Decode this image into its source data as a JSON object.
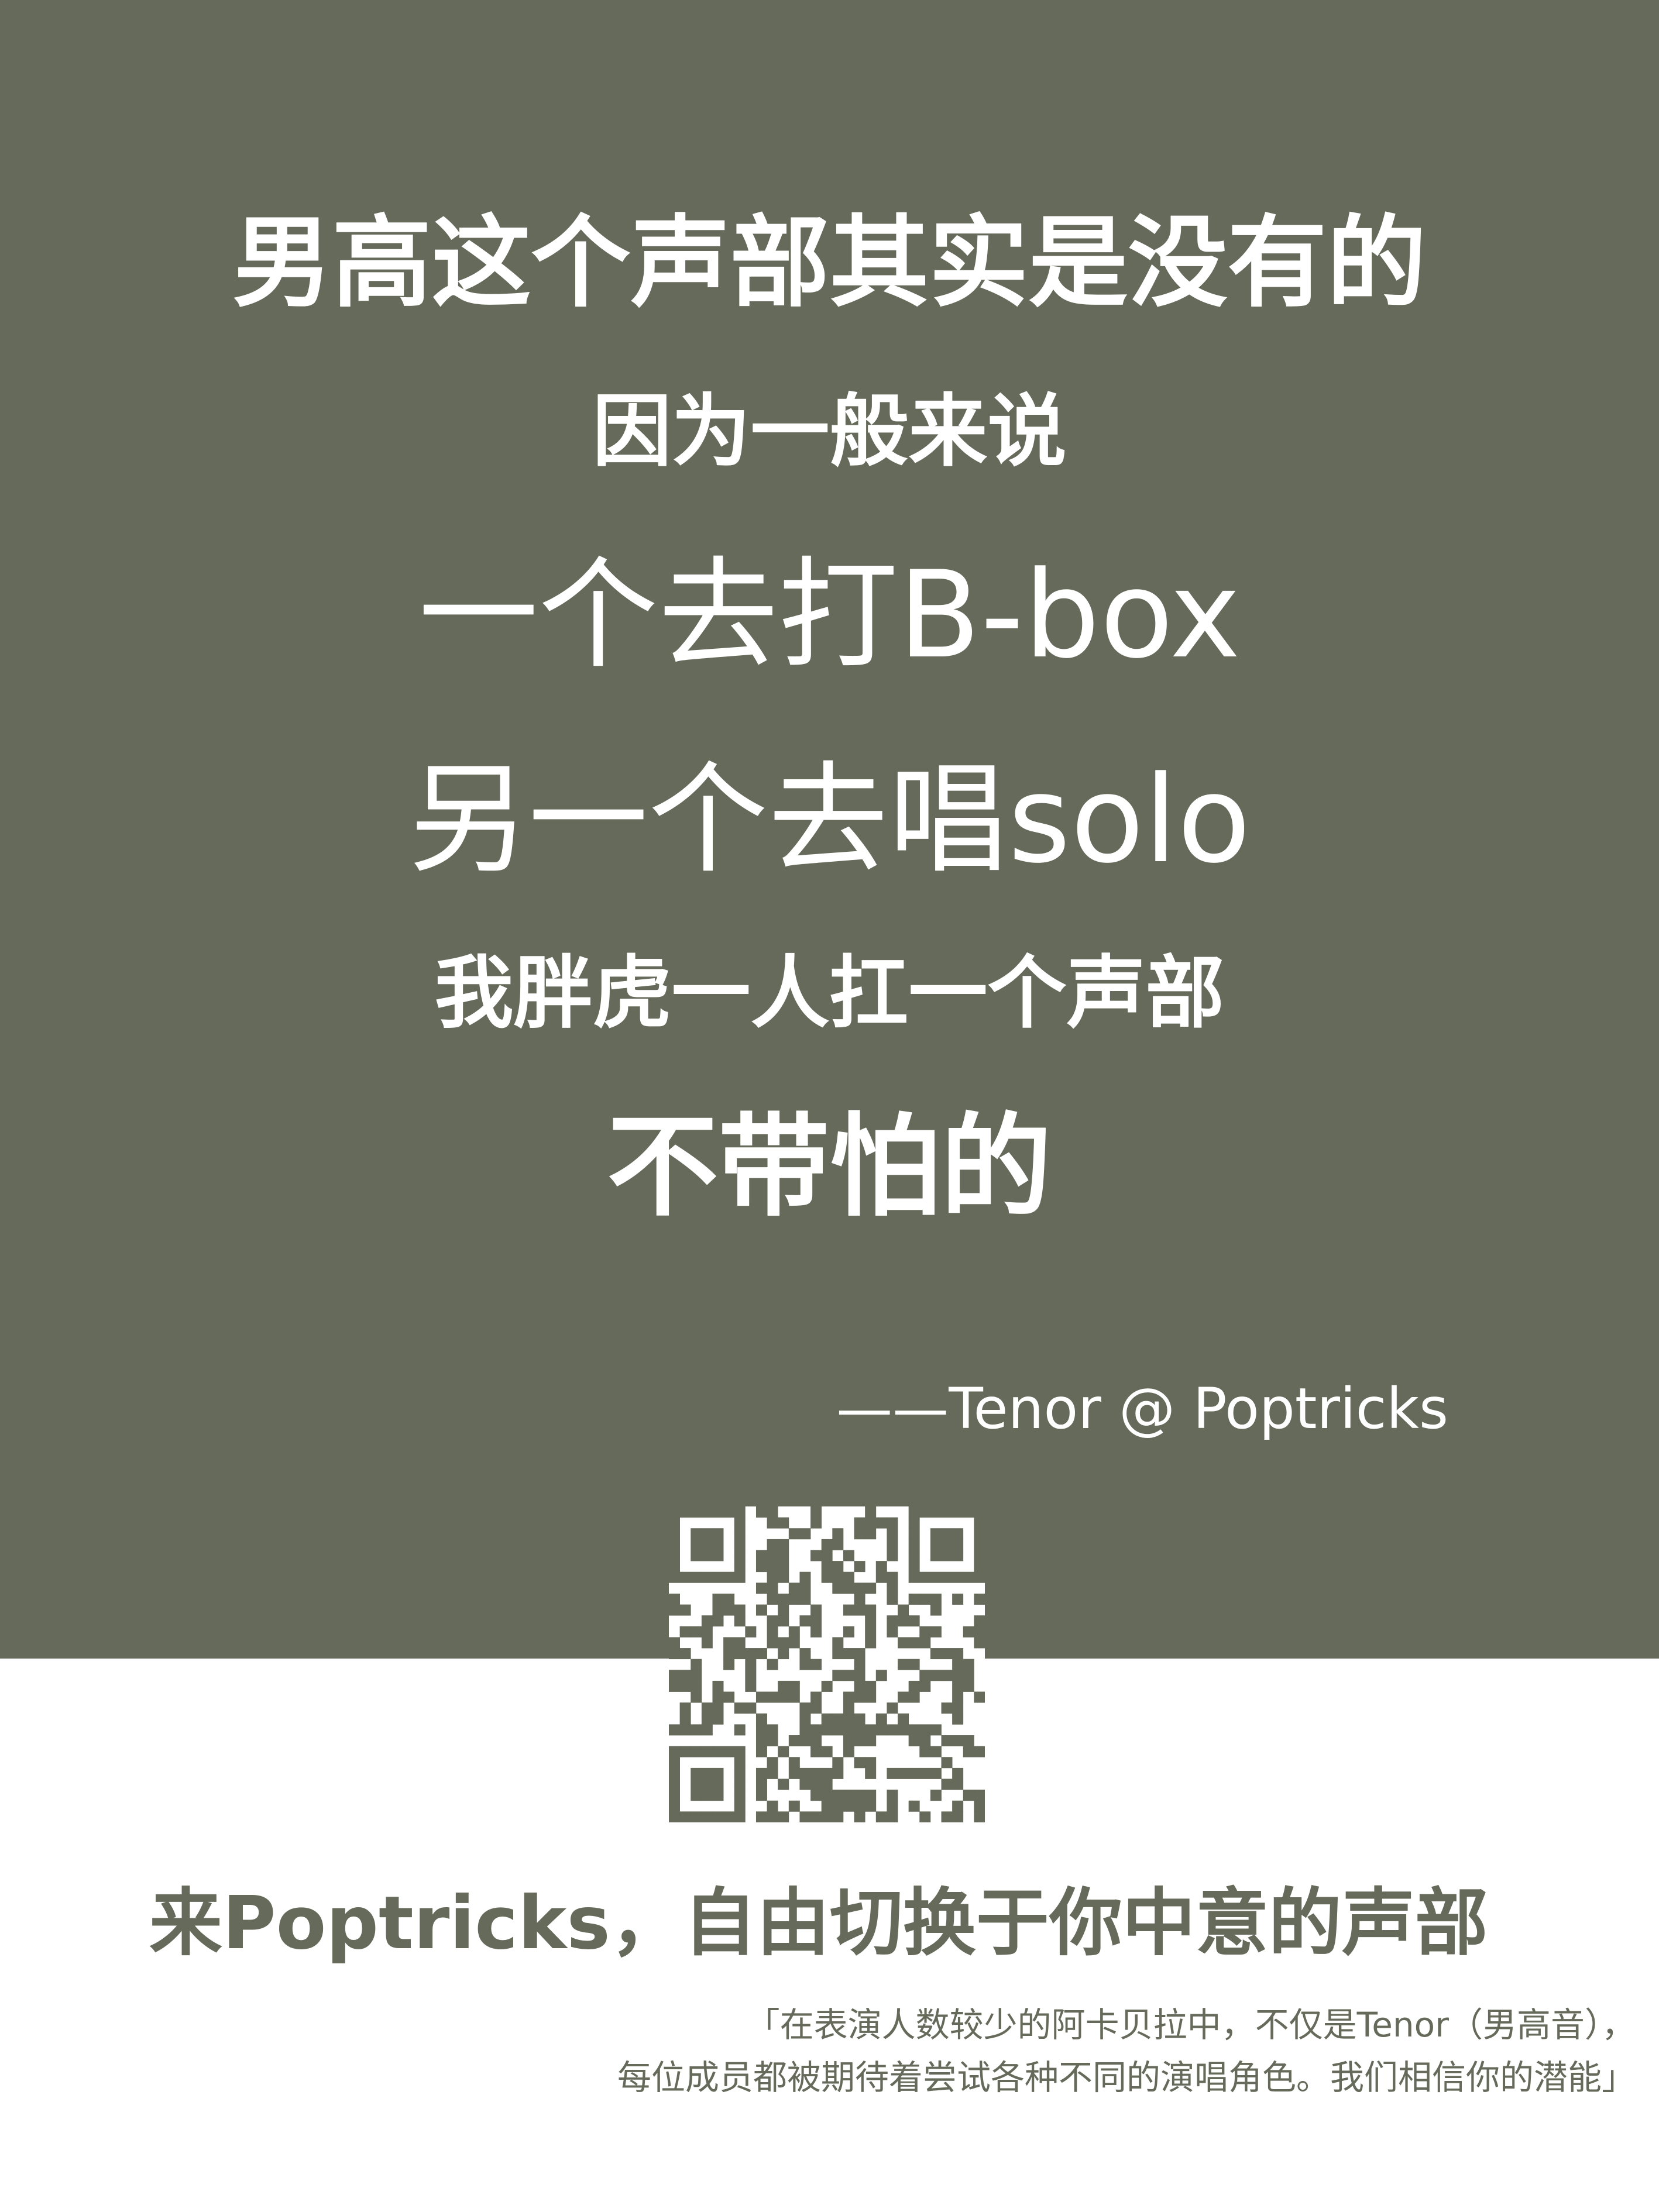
{
  "colors": {
    "panel": "#656a5a",
    "background": "#ffffff",
    "panel_text": "#ffffff",
    "footer_text": "#656a5a"
  },
  "poem": {
    "line1": "男高这个声部其实是没有的",
    "line2": "因为一般来说",
    "line3": "一个去打B-box",
    "line4": "另一个去唱solo",
    "line5": "我胖虎一人扛一个声部",
    "line6": "不带怕的"
  },
  "signature": "——Tenor  @  Poptricks",
  "qr_code": {
    "icon": "qr-code"
  },
  "slogan": "来Poptricks，自由切换于你中意的声部",
  "note": {
    "line1": "「在表演人数较少的阿卡贝拉中，不仅是Tenor（男高音），",
    "line2": "每位成员都被期待着尝试各种不同的演唱角色。我们相信你的潜能」"
  }
}
